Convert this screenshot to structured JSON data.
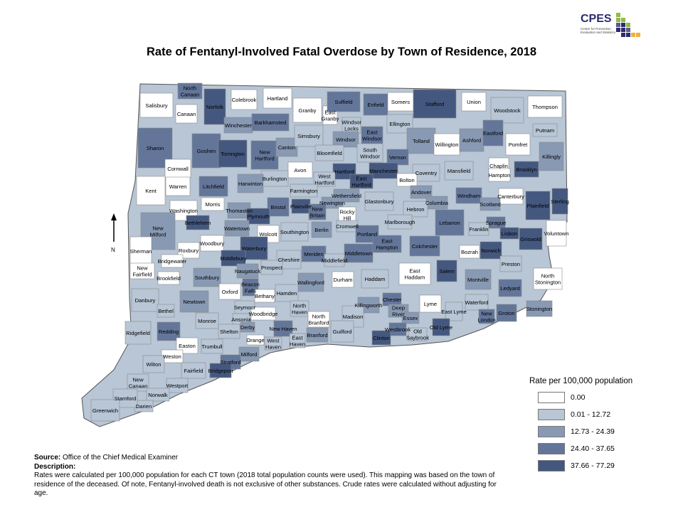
{
  "title": "Rate of Fentanyl-Involved Fatal Overdose by Town of Residence, 2018",
  "logo": {
    "name": "CPES",
    "subtitle": "Center for Prevention Evaluation and Statistics"
  },
  "colors": {
    "c0": "#ffffff",
    "c1": "#b8c6d6",
    "c2": "#8899b3",
    "c3": "#63769a",
    "c4": "#44587f"
  },
  "legend": {
    "title": "Rate per 100,000 population",
    "classes": [
      {
        "label": "0.00",
        "color": "#ffffff"
      },
      {
        "label": "0.01 - 12.72",
        "color": "#b8c6d6"
      },
      {
        "label": "12.73 - 24.39",
        "color": "#8899b3"
      },
      {
        "label": "24.40 - 37.65",
        "color": "#63769a"
      },
      {
        "label": "37.66 - 77.29",
        "color": "#44587f"
      }
    ]
  },
  "notes": {
    "source_label": "Source:",
    "source_text": "Office of the Chief Medical Examiner",
    "description_label": "Description:",
    "description_text": "Rates were calculated per 100,000 population for each CT town (2018 total population counts were used). This mapping was based on the town of residence of the deceased. Of note,  Fentanyl-involved death is not exclusive of other substances. Crude rates were calculated without adjusting for age."
  },
  "north_label": "N",
  "towns": [
    {
      "name": "Salisbury",
      "cls": 0
    },
    {
      "name": "North Canaan",
      "cls": 3
    },
    {
      "name": "Norfolk",
      "cls": 4
    },
    {
      "name": "Colebrook",
      "cls": 0
    },
    {
      "name": "Hartland",
      "cls": 0
    },
    {
      "name": "Canaan",
      "cls": 0
    },
    {
      "name": "Granby",
      "cls": 0
    },
    {
      "name": "East Granby",
      "cls": 0
    },
    {
      "name": "Suffield",
      "cls": 3
    },
    {
      "name": "Enfield",
      "cls": 3
    },
    {
      "name": "Somers",
      "cls": 0
    },
    {
      "name": "Stafford",
      "cls": 4
    },
    {
      "name": "Union",
      "cls": 0
    },
    {
      "name": "Woodstock",
      "cls": 1
    },
    {
      "name": "Thompson",
      "cls": 0
    },
    {
      "name": "Winchester",
      "cls": 2
    },
    {
      "name": "Barkhamsted",
      "cls": 3
    },
    {
      "name": "Windsor Locks",
      "cls": 1
    },
    {
      "name": "East Windsor",
      "cls": 3
    },
    {
      "name": "Ellington",
      "cls": 1
    },
    {
      "name": "Putnam",
      "cls": 1
    },
    {
      "name": "Sharon",
      "cls": 3
    },
    {
      "name": "Goshen",
      "cls": 3
    },
    {
      "name": "Torrington",
      "cls": 4
    },
    {
      "name": "New Hartford",
      "cls": 3
    },
    {
      "name": "Canton",
      "cls": 2
    },
    {
      "name": "Simsbury",
      "cls": 1
    },
    {
      "name": "Windsor",
      "cls": 2
    },
    {
      "name": "Tolland",
      "cls": 2
    },
    {
      "name": "Willington",
      "cls": 0
    },
    {
      "name": "Ashford",
      "cls": 2
    },
    {
      "name": "Eastford",
      "cls": 3
    },
    {
      "name": "Pomfret",
      "cls": 0
    },
    {
      "name": "Killingly",
      "cls": 2
    },
    {
      "name": "Cornwall",
      "cls": 0
    },
    {
      "name": "Bloomfield",
      "cls": 1
    },
    {
      "name": "South Windsor",
      "cls": 1
    },
    {
      "name": "Vernon",
      "cls": 3
    },
    {
      "name": "Avon",
      "cls": 0
    },
    {
      "name": "Chaplin",
      "cls": 0
    },
    {
      "name": "Hartford",
      "cls": 4
    },
    {
      "name": "Manchester",
      "cls": 4
    },
    {
      "name": "Coventry",
      "cls": 1
    },
    {
      "name": "Mansfield",
      "cls": 1
    },
    {
      "name": "Hampton",
      "cls": 0
    },
    {
      "name": "Brooklyn",
      "cls": 4
    },
    {
      "name": "Burlington",
      "cls": 1
    },
    {
      "name": "West Hartford",
      "cls": 1
    },
    {
      "name": "East Hartford",
      "cls": 4
    },
    {
      "name": "Bolton",
      "cls": 0
    },
    {
      "name": "Kent",
      "cls": 0
    },
    {
      "name": "Warren",
      "cls": 0
    },
    {
      "name": "Litchfield",
      "cls": 3
    },
    {
      "name": "Harwinton",
      "cls": 2
    },
    {
      "name": "Farmington",
      "cls": 1
    },
    {
      "name": "Wethersfield",
      "cls": 2
    },
    {
      "name": "Andover",
      "cls": 2
    },
    {
      "name": "Windham",
      "cls": 3
    },
    {
      "name": "Canterbury",
      "cls": 0
    },
    {
      "name": "Sterling",
      "cls": 4
    },
    {
      "name": "Morris",
      "cls": 0
    },
    {
      "name": "Newington",
      "cls": 2
    },
    {
      "name": "Glastonbury",
      "cls": 1
    },
    {
      "name": "Columbia",
      "cls": 2
    },
    {
      "name": "Scotland",
      "cls": 2
    },
    {
      "name": "Plainfield",
      "cls": 4
    },
    {
      "name": "Washington",
      "cls": 0
    },
    {
      "name": "Thomaston",
      "cls": 2
    },
    {
      "name": "Bristol",
      "cls": 3
    },
    {
      "name": "Plainville",
      "cls": 4
    },
    {
      "name": "New Britain",
      "cls": 3
    },
    {
      "name": "Rocky Hill",
      "cls": 0
    },
    {
      "name": "Hebron",
      "cls": 1
    },
    {
      "name": "New Milford",
      "cls": 2
    },
    {
      "name": "Plymouth",
      "cls": 4
    },
    {
      "name": "Bethlehem",
      "cls": 4
    },
    {
      "name": "Watertown",
      "cls": 2
    },
    {
      "name": "Cromwell",
      "cls": 1
    },
    {
      "name": "Sprague",
      "cls": 3
    },
    {
      "name": "Voluntown",
      "cls": 0
    },
    {
      "name": "Southington",
      "cls": 1
    },
    {
      "name": "Berlin",
      "cls": 2
    },
    {
      "name": "Portland",
      "cls": 3
    },
    {
      "name": "Marlborough",
      "cls": 1
    },
    {
      "name": "Lebanon",
      "cls": 3
    },
    {
      "name": "Franklin",
      "cls": 1
    },
    {
      "name": "Lisbon",
      "cls": 4
    },
    {
      "name": "Griswold",
      "cls": 4
    },
    {
      "name": "Wolcott",
      "cls": 0
    },
    {
      "name": "Woodbury",
      "cls": 0
    },
    {
      "name": "Sherman",
      "cls": 0
    },
    {
      "name": "Roxbury",
      "cls": 0
    },
    {
      "name": "Waterbury",
      "cls": 4
    },
    {
      "name": "East Hampton",
      "cls": 3
    },
    {
      "name": "Colchester",
      "cls": 3
    },
    {
      "name": "Bozrah",
      "cls": 0
    },
    {
      "name": "Norwich",
      "cls": 4
    },
    {
      "name": "Bridgewater",
      "cls": 0
    },
    {
      "name": "Middlebury",
      "cls": 4
    },
    {
      "name": "Meriden",
      "cls": 3
    },
    {
      "name": "Middletown",
      "cls": 3
    },
    {
      "name": "Middlefield",
      "cls": 1
    },
    {
      "name": "Cheshire",
      "cls": 1
    },
    {
      "name": "Preston",
      "cls": 1
    },
    {
      "name": "New Fairfield",
      "cls": 0
    },
    {
      "name": "Naugatuck",
      "cls": 2
    },
    {
      "name": "Prospect",
      "cls": 1
    },
    {
      "name": "Salem",
      "cls": 4
    },
    {
      "name": "East Haddam",
      "cls": 0
    },
    {
      "name": "Brookfield",
      "cls": 0
    },
    {
      "name": "Southbury",
      "cls": 2
    },
    {
      "name": "Haddam",
      "cls": 1
    },
    {
      "name": "Montville",
      "cls": 2
    },
    {
      "name": "North Stonington",
      "cls": 0
    },
    {
      "name": "Durham",
      "cls": 0
    },
    {
      "name": "Wallingford",
      "cls": 2
    },
    {
      "name": "Beacon Falls",
      "cls": 3
    },
    {
      "name": "Oxford",
      "cls": 0
    },
    {
      "name": "Danbury",
      "cls": 1
    },
    {
      "name": "Hamden",
      "cls": 1
    },
    {
      "name": "Bethany",
      "cls": 0
    },
    {
      "name": "Ledyard",
      "cls": 3
    },
    {
      "name": "Newtown",
      "cls": 2
    },
    {
      "name": "Chester",
      "cls": 3
    },
    {
      "name": "Lyme",
      "cls": 0
    },
    {
      "name": "Killingworth",
      "cls": 2
    },
    {
      "name": "Deep River",
      "cls": 2
    },
    {
      "name": "Waterford",
      "cls": 1
    },
    {
      "name": "North Haven",
      "cls": 1
    },
    {
      "name": "Bethel",
      "cls": 1
    },
    {
      "name": "Seymour",
      "cls": 1
    },
    {
      "name": "Woodbridge",
      "cls": 0
    },
    {
      "name": "North Branford",
      "cls": 0
    },
    {
      "name": "Madison",
      "cls": 1
    },
    {
      "name": "Essex",
      "cls": 2
    },
    {
      "name": "East Lyme",
      "cls": 1
    },
    {
      "name": "Ansonia",
      "cls": 1
    },
    {
      "name": "Monroe",
      "cls": 1
    },
    {
      "name": "Derby",
      "cls": 2
    },
    {
      "name": "New London",
      "cls": 3
    },
    {
      "name": "Groton",
      "cls": 3
    },
    {
      "name": "Stonington",
      "cls": 2
    },
    {
      "name": "Ridgefield",
      "cls": 1
    },
    {
      "name": "Redding",
      "cls": 3
    },
    {
      "name": "Shelton",
      "cls": 1
    },
    {
      "name": "New Haven",
      "cls": 3
    },
    {
      "name": "Westbrook",
      "cls": 3
    },
    {
      "name": "Old Lyme",
      "cls": 4
    },
    {
      "name": "Old Saybrook",
      "cls": 1
    },
    {
      "name": "Guilford",
      "cls": 1
    },
    {
      "name": "Branford",
      "cls": 2
    },
    {
      "name": "Orange",
      "cls": 0
    },
    {
      "name": "West Haven",
      "cls": 1
    },
    {
      "name": "East Haven",
      "cls": 1
    },
    {
      "name": "Clinton",
      "cls": 4
    },
    {
      "name": "Easton",
      "cls": 0
    },
    {
      "name": "Trumbull",
      "cls": 1
    },
    {
      "name": "Milford",
      "cls": 2
    },
    {
      "name": "Weston",
      "cls": 0
    },
    {
      "name": "Wilton",
      "cls": 1
    },
    {
      "name": "Stratford",
      "cls": 3
    },
    {
      "name": "Fairfield",
      "cls": 1
    },
    {
      "name": "Bridgeport",
      "cls": 4
    },
    {
      "name": "New Canaan",
      "cls": 1
    },
    {
      "name": "Westport",
      "cls": 1
    },
    {
      "name": "Norwalk",
      "cls": 1
    },
    {
      "name": "Darien",
      "cls": 1
    },
    {
      "name": "Stamford",
      "cls": 1
    },
    {
      "name": "Greenwich",
      "cls": 1
    }
  ]
}
